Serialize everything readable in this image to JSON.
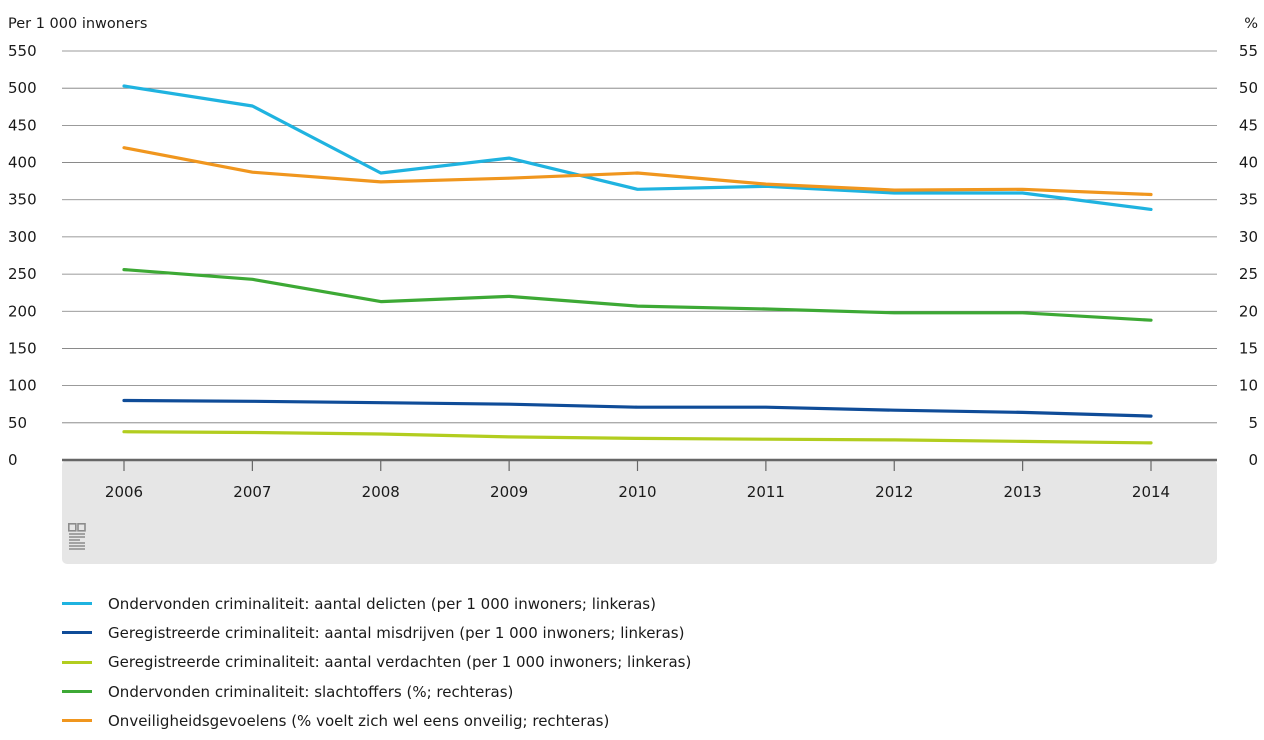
{
  "chart_data": {
    "type": "line",
    "left_axis": {
      "unit_label": "Per 1 000 inwoners",
      "ylim": [
        0,
        550
      ],
      "ticks": [
        "0",
        "50",
        "100",
        "150",
        "200",
        "250",
        "300",
        "350",
        "400",
        "450",
        "500",
        "550"
      ]
    },
    "right_axis": {
      "unit_label": "%",
      "ylim": [
        0,
        55
      ],
      "ticks": [
        "0",
        "5",
        "10",
        "15",
        "20",
        "25",
        "30",
        "35",
        "40",
        "45",
        "50",
        "55"
      ]
    },
    "x": [
      "2006",
      "2007",
      "2008",
      "2009",
      "2010",
      "2011",
      "2012",
      "2013",
      "2014"
    ],
    "grid": true,
    "legend_position": "bottom",
    "series": [
      {
        "name": "Ondervonden criminaliteit: aantal delicten (per 1 000 inwoners; linkeras)",
        "axis": "left",
        "color": "#1fb3e0",
        "values": [
          503,
          476,
          386,
          406,
          364,
          368,
          359,
          359,
          337
        ]
      },
      {
        "name": "Geregistreerde criminaliteit: aantal misdrijven (per 1 000 inwoners; linkeras)",
        "axis": "left",
        "color": "#0f4c98",
        "values": [
          80,
          79,
          77,
          75,
          71,
          71,
          67,
          64,
          59
        ]
      },
      {
        "name": "Geregistreerde criminaliteit: aantal verdachten (per 1 000 inwoners; linkeras)",
        "axis": "left",
        "color": "#b2cd1f",
        "values": [
          38,
          37,
          35,
          31,
          29,
          28,
          27,
          25,
          23
        ]
      },
      {
        "name": "Ondervonden criminaliteit: slachtoffers (%; rechteras)",
        "axis": "right",
        "color": "#3da935",
        "values": [
          25.6,
          24.3,
          21.3,
          22.0,
          20.7,
          20.3,
          19.8,
          19.8,
          18.8
        ]
      },
      {
        "name": "Onveiligheidsgevoelens (% voelt zich wel eens onveilig; rechteras)",
        "axis": "right",
        "color": "#f0961e",
        "values": [
          42.0,
          38.7,
          37.4,
          37.9,
          38.6,
          37.1,
          36.3,
          36.4,
          35.7
        ]
      }
    ]
  },
  "colors": {
    "axis_band": "#e6e6e6",
    "grid": "#7a7a7a",
    "logo": "#8c8c8c"
  },
  "icons": {
    "logo": "cbs-logo-icon"
  }
}
